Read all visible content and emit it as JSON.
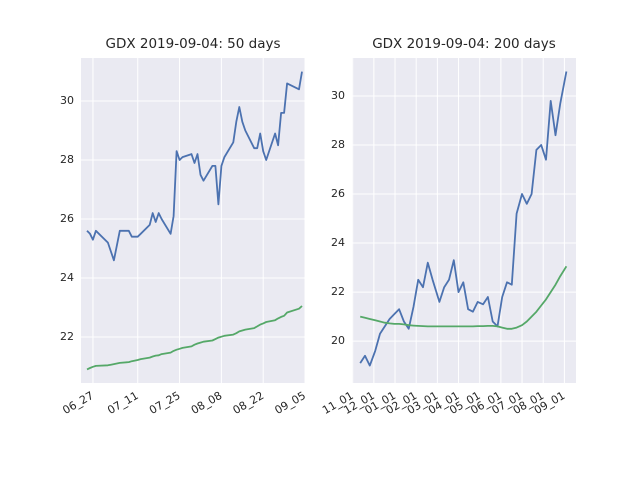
{
  "chart_data": [
    {
      "type": "line",
      "title": "GDX 2019-09-04: 50 days",
      "x": [
        "06_25",
        "06_26",
        "06_27",
        "06_28",
        "07_01",
        "07_02",
        "07_03",
        "07_05",
        "07_08",
        "07_09",
        "07_10",
        "07_11",
        "07_12",
        "07_15",
        "07_16",
        "07_17",
        "07_18",
        "07_19",
        "07_22",
        "07_23",
        "07_24",
        "07_25",
        "07_26",
        "07_29",
        "07_30",
        "07_31",
        "08_01",
        "08_02",
        "08_05",
        "08_06",
        "08_07",
        "08_08",
        "08_09",
        "08_12",
        "08_13",
        "08_14",
        "08_15",
        "08_16",
        "08_19",
        "08_20",
        "08_21",
        "08_22",
        "08_23",
        "08_26",
        "08_27",
        "08_28",
        "08_29",
        "08_30",
        "09_03",
        "09_04"
      ],
      "series": [
        {
          "color": "#4c72b0",
          "values": [
            25.6,
            25.5,
            25.3,
            25.6,
            25.2,
            24.9,
            24.6,
            25.6,
            25.6,
            25.4,
            25.4,
            25.4,
            25.5,
            25.8,
            26.2,
            25.9,
            26.2,
            26.0,
            25.5,
            26.1,
            28.3,
            28.0,
            28.1,
            28.2,
            27.9,
            28.2,
            27.5,
            27.3,
            27.8,
            27.8,
            26.5,
            27.8,
            28.1,
            28.6,
            29.3,
            29.8,
            29.3,
            29.0,
            28.4,
            28.4,
            28.9,
            28.3,
            28.0,
            28.9,
            28.5,
            29.6,
            29.6,
            30.6,
            30.4,
            31.0
          ]
        },
        {
          "color": "#55a868",
          "values": [
            20.9,
            20.95,
            20.99,
            21.02,
            21.04,
            21.06,
            21.08,
            21.12,
            21.15,
            21.18,
            21.2,
            21.22,
            21.25,
            21.3,
            21.34,
            21.37,
            21.38,
            21.42,
            21.47,
            21.53,
            21.57,
            21.6,
            21.63,
            21.68,
            21.74,
            21.78,
            21.81,
            21.84,
            21.88,
            21.93,
            21.98,
            22.01,
            22.04,
            22.08,
            22.13,
            22.19,
            22.22,
            22.25,
            22.3,
            22.36,
            22.42,
            22.46,
            22.51,
            22.57,
            22.63,
            22.68,
            22.72,
            22.83,
            22.96,
            23.05
          ]
        }
      ],
      "xlim": [
        "06_23",
        "09_05"
      ],
      "xticks": [
        "06_27",
        "07_11",
        "07_25",
        "08_08",
        "08_22",
        "09_05"
      ],
      "ylim": [
        20.44,
        31.46
      ],
      "yticks": [
        22,
        24,
        26,
        28,
        30
      ],
      "grid": true
    },
    {
      "type": "line",
      "title": "GDX 2019-09-04: 200 days",
      "x": [
        "11_12",
        "11_19",
        "11_26",
        "12_03",
        "12_10",
        "12_17",
        "12_24",
        "12_31",
        "01_07",
        "01_14",
        "01_21",
        "01_28",
        "02_04",
        "02_11",
        "02_18",
        "02_25",
        "03_04",
        "03_11",
        "03_18",
        "03_25",
        "04_01",
        "04_08",
        "04_15",
        "04_22",
        "04_29",
        "05_06",
        "05_13",
        "05_20",
        "05_27",
        "06_03",
        "06_10",
        "06_17",
        "06_24",
        "07_01",
        "07_08",
        "07_15",
        "07_22",
        "07_29",
        "08_05",
        "08_12",
        "08_19",
        "08_26",
        "09_04"
      ],
      "series": [
        {
          "color": "#4c72b0",
          "values": [
            19.1,
            19.4,
            19.0,
            19.6,
            20.3,
            20.6,
            20.9,
            21.1,
            21.3,
            20.8,
            20.5,
            21.4,
            22.5,
            22.2,
            23.2,
            22.5,
            21.6,
            22.2,
            22.5,
            23.3,
            22.0,
            22.4,
            21.3,
            21.2,
            21.6,
            21.5,
            21.8,
            20.8,
            20.6,
            21.8,
            22.4,
            22.3,
            25.2,
            26.0,
            25.6,
            26.0,
            27.8,
            28.0,
            27.4,
            29.8,
            28.4,
            29.7,
            31.0
          ]
        },
        {
          "color": "#55a868",
          "values": [
            21.0,
            20.95,
            20.9,
            20.85,
            20.8,
            20.75,
            20.72,
            20.7,
            20.7,
            20.68,
            20.65,
            20.63,
            20.62,
            20.61,
            20.6,
            20.6,
            20.6,
            20.6,
            20.6,
            20.6,
            20.6,
            20.6,
            20.6,
            20.6,
            20.61,
            20.61,
            20.62,
            20.62,
            20.6,
            20.55,
            20.5,
            20.5,
            20.55,
            20.65,
            20.8,
            21.0,
            21.2,
            21.45,
            21.7,
            22.0,
            22.3,
            22.65,
            23.05
          ]
        }
      ],
      "xlim": [
        "10_31",
        "09_18"
      ],
      "xticks": [
        "11_01",
        "12_01",
        "01_01",
        "02_01",
        "03_01",
        "04_01",
        "05_01",
        "06_01",
        "07_01",
        "08_01",
        "09_01"
      ],
      "ylim": [
        18.29,
        31.55
      ],
      "yticks": [
        20,
        22,
        24,
        26,
        28,
        30
      ],
      "grid": true
    }
  ]
}
